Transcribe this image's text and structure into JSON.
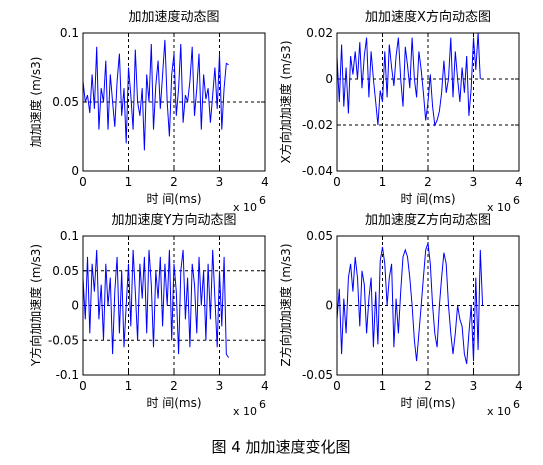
{
  "figure": {
    "caption": "图 4  加加速度变化图"
  },
  "colors": {
    "line": "#0000ff",
    "axes": "#000000",
    "grid": "#000000"
  },
  "chart_data": [
    {
      "type": "line",
      "title": "加加速度动态图",
      "xlabel": "时 间(ms)",
      "ylabel": "加加速度 (m/s3)",
      "x_exponent": "x 10",
      "x_exponent_power": "6",
      "xlim": [
        0,
        4000000
      ],
      "ylim": [
        0,
        0.1
      ],
      "xticks": [
        "0",
        "1",
        "2",
        "3",
        "4"
      ],
      "yticks": [
        "0",
        "0.05",
        "0.1"
      ],
      "grid": "dashed at interior ticks",
      "x": [
        0,
        50000,
        100000,
        150000,
        200000,
        250000,
        300000,
        350000,
        400000,
        450000,
        500000,
        550000,
        600000,
        650000,
        700000,
        750000,
        800000,
        850000,
        900000,
        950000,
        1000000,
        1050000,
        1100000,
        1150000,
        1200000,
        1250000,
        1300000,
        1350000,
        1400000,
        1450000,
        1500000,
        1550000,
        1600000,
        1650000,
        1700000,
        1750000,
        1800000,
        1850000,
        1900000,
        1950000,
        2000000,
        2050000,
        2100000,
        2150000,
        2200000,
        2250000,
        2300000,
        2350000,
        2400000,
        2450000,
        2500000,
        2550000,
        2600000,
        2650000,
        2700000,
        2750000,
        2800000,
        2850000,
        2900000,
        2950000,
        3000000,
        3050000,
        3100000,
        3150000,
        3200000
      ],
      "series": [
        {
          "values": [
            0.065,
            0.05,
            0.055,
            0.042,
            0.07,
            0.045,
            0.09,
            0.03,
            0.06,
            0.05,
            0.08,
            0.03,
            0.07,
            0.05,
            0.032,
            0.065,
            0.085,
            0.04,
            0.06,
            0.02,
            0.075,
            0.055,
            0.03,
            0.088,
            0.05,
            0.04,
            0.06,
            0.015,
            0.07,
            0.05,
            0.092,
            0.03,
            0.062,
            0.08,
            0.045,
            0.07,
            0.095,
            0.05,
            0.025,
            0.07,
            0.085,
            0.04,
            0.06,
            0.092,
            0.035,
            0.055,
            0.05,
            0.065,
            0.09,
            0.04,
            0.06,
            0.085,
            0.03,
            0.07,
            0.052,
            0.06,
            0.035,
            0.055,
            0.075,
            0.045,
            0.085,
            0.03,
            0.06,
            0.078,
            0.077
          ]
        }
      ]
    },
    {
      "type": "line",
      "title": "加加速度X方向动态图",
      "xlabel": "时 间(ms)",
      "ylabel": "X方向加加速度 (m/s3)",
      "x_exponent": "x 10",
      "x_exponent_power": "6",
      "xlim": [
        0,
        4000000
      ],
      "ylim": [
        -0.04,
        0.02
      ],
      "xticks": [
        "0",
        "1",
        "2",
        "3",
        "4"
      ],
      "yticks": [
        "-0.04",
        "-0.02",
        "0",
        "0.02"
      ],
      "grid": "dashed at interior ticks",
      "x": [
        0,
        50000,
        100000,
        150000,
        200000,
        250000,
        300000,
        350000,
        400000,
        450000,
        500000,
        550000,
        600000,
        650000,
        700000,
        750000,
        800000,
        850000,
        900000,
        950000,
        1000000,
        1050000,
        1100000,
        1150000,
        1200000,
        1250000,
        1300000,
        1350000,
        1400000,
        1450000,
        1500000,
        1550000,
        1600000,
        1650000,
        1700000,
        1750000,
        1800000,
        1850000,
        1900000,
        1950000,
        2000000,
        2050000,
        2100000,
        2150000,
        2200000,
        2250000,
        2300000,
        2350000,
        2400000,
        2450000,
        2500000,
        2550000,
        2600000,
        2650000,
        2700000,
        2750000,
        2800000,
        2850000,
        2900000,
        2950000,
        3000000,
        3050000,
        3100000,
        3150000
      ],
      "series": [
        {
          "values": [
            0.01,
            -0.01,
            0.015,
            -0.012,
            0.005,
            -0.015,
            0.01,
            0.002,
            0.012,
            0.0,
            0.016,
            -0.004,
            0.01,
            0.018,
            -0.008,
            0.012,
            0.0,
            -0.01,
            -0.02,
            -0.005,
            -0.01,
            0.012,
            -0.008,
            0.015,
            0.005,
            -0.003,
            0.01,
            0.018,
            0.0,
            -0.012,
            0.014,
            0.006,
            -0.004,
            0.018,
            0.0,
            -0.008,
            0.012,
            0.004,
            -0.006,
            -0.018,
            -0.01,
            0.002,
            -0.012,
            -0.02,
            -0.018,
            -0.014,
            -0.006,
            0.008,
            -0.006,
            0.0,
            0.018,
            -0.008,
            0.012,
            0.0,
            -0.01,
            0.005,
            -0.006,
            0.01,
            -0.016,
            -0.004,
            0.018,
            0.004,
            0.02,
            0.0
          ]
        }
      ]
    },
    {
      "type": "line",
      "title": "加加速度Y方向动态图",
      "xlabel": "时 间(ms)",
      "ylabel": "Y方向加加速度 (m/s3)",
      "x_exponent": "x 10",
      "x_exponent_power": "6",
      "xlim": [
        0,
        4000000
      ],
      "ylim": [
        -0.1,
        0.1
      ],
      "xticks": [
        "0",
        "1",
        "2",
        "3",
        "4"
      ],
      "yticks": [
        "-0.1",
        "-0.05",
        "0",
        "0.05",
        "0.1"
      ],
      "grid": "dashed at interior ticks",
      "x": [
        0,
        50000,
        100000,
        150000,
        200000,
        250000,
        300000,
        350000,
        400000,
        450000,
        500000,
        550000,
        600000,
        650000,
        700000,
        750000,
        800000,
        850000,
        900000,
        950000,
        1000000,
        1050000,
        1100000,
        1150000,
        1200000,
        1250000,
        1300000,
        1350000,
        1400000,
        1450000,
        1500000,
        1550000,
        1600000,
        1650000,
        1700000,
        1750000,
        1800000,
        1850000,
        1900000,
        1950000,
        2000000,
        2050000,
        2100000,
        2150000,
        2200000,
        2250000,
        2300000,
        2350000,
        2400000,
        2450000,
        2500000,
        2550000,
        2600000,
        2650000,
        2700000,
        2750000,
        2800000,
        2850000,
        2900000,
        2950000,
        3000000,
        3050000,
        3100000,
        3150000,
        3200000
      ],
      "series": [
        {
          "values": [
            0.04,
            -0.02,
            0.07,
            -0.04,
            0.06,
            0.02,
            0.08,
            -0.02,
            0.03,
            -0.05,
            0.06,
            0.0,
            0.04,
            -0.07,
            0.02,
            0.07,
            -0.04,
            0.05,
            -0.06,
            0.0,
            0.06,
            -0.03,
            0.08,
            0.02,
            -0.05,
            0.06,
            0.01,
            0.07,
            -0.04,
            0.08,
            0.03,
            -0.06,
            0.05,
            0.01,
            0.07,
            -0.03,
            0.06,
            0.0,
            0.08,
            -0.05,
            0.06,
            0.02,
            -0.07,
            0.05,
            0.08,
            -0.02,
            0.04,
            -0.06,
            0.06,
            0.03,
            -0.04,
            0.07,
            0.0,
            0.05,
            -0.05,
            0.06,
            -0.02,
            0.08,
            0.01,
            -0.06,
            0.05,
            -0.03,
            0.07,
            -0.07,
            -0.075
          ]
        }
      ]
    },
    {
      "type": "line",
      "title": "加加速度Z方向动态图",
      "xlabel": "时 间(ms)",
      "ylabel": "Z方向加加速度 (m/s3)",
      "x_exponent": "x 10",
      "x_exponent_power": "6",
      "xlim": [
        0,
        4000000
      ],
      "ylim": [
        -0.05,
        0.05
      ],
      "xticks": [
        "0",
        "1",
        "2",
        "3",
        "4"
      ],
      "yticks": [
        "-0.05",
        "0",
        "0.05"
      ],
      "grid": "dashed at interior ticks",
      "x": [
        0,
        50000,
        100000,
        150000,
        200000,
        250000,
        300000,
        350000,
        400000,
        450000,
        500000,
        550000,
        600000,
        650000,
        700000,
        750000,
        800000,
        850000,
        900000,
        950000,
        1000000,
        1050000,
        1100000,
        1150000,
        1200000,
        1250000,
        1300000,
        1350000,
        1400000,
        1450000,
        1500000,
        1550000,
        1600000,
        1650000,
        1700000,
        1750000,
        1800000,
        1850000,
        1900000,
        1950000,
        2000000,
        2050000,
        2100000,
        2150000,
        2200000,
        2250000,
        2300000,
        2350000,
        2400000,
        2450000,
        2500000,
        2550000,
        2600000,
        2650000,
        2700000,
        2750000,
        2800000,
        2850000,
        2900000,
        2950000,
        3000000,
        3050000,
        3100000,
        3150000,
        3200000
      ],
      "series": [
        {
          "values": [
            -0.01,
            0.012,
            -0.035,
            0.005,
            -0.02,
            0.02,
            0.03,
            0.01,
            0.035,
            0.02,
            -0.015,
            0.025,
            0.015,
            -0.02,
            0.005,
            0.02,
            -0.03,
            0.01,
            -0.028,
            0.032,
            0.042,
            0.03,
            0.0,
            0.02,
            0.03,
            -0.03,
            0.005,
            -0.02,
            0.01,
            0.035,
            0.04,
            0.035,
            0.02,
            0.0,
            -0.025,
            -0.04,
            -0.02,
            0.0,
            0.02,
            0.04,
            0.045,
            0.03,
            0.0,
            -0.02,
            -0.03,
            0.0,
            0.02,
            0.038,
            0.03,
            0.0,
            -0.02,
            -0.035,
            -0.02,
            0.0,
            -0.01,
            -0.015,
            -0.035,
            -0.042,
            -0.02,
            0.0,
            -0.04,
            0.02,
            -0.032,
            0.04,
            0.0
          ]
        }
      ]
    }
  ]
}
